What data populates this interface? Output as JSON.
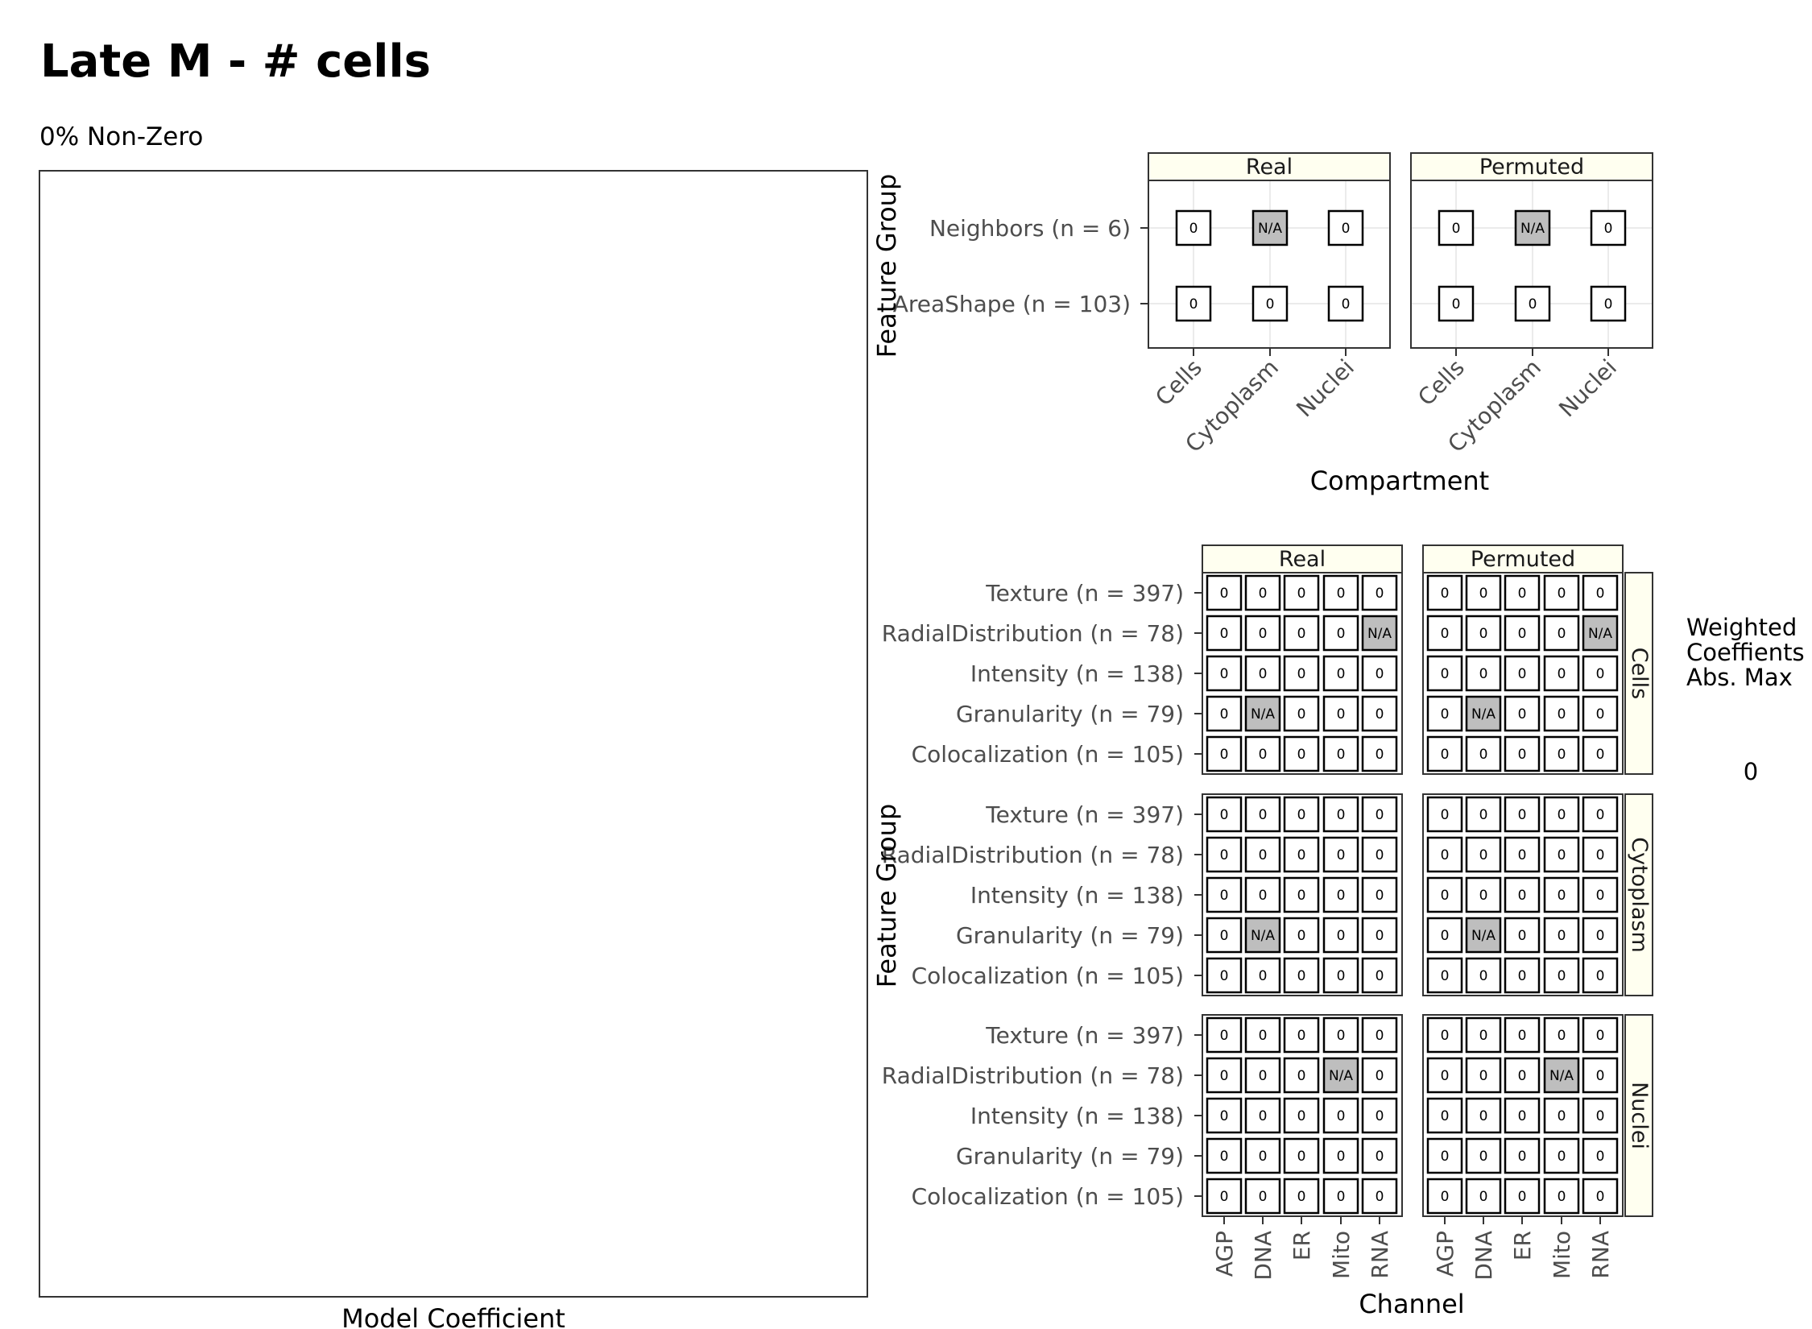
{
  "chart_data": [
    {
      "type": "bar",
      "title": "Late M - # cells",
      "subtitle": "0% Non-Zero",
      "xlabel": "Model Coefficient",
      "ylabel": "",
      "categories": [],
      "values": []
    },
    {
      "type": "heatmap",
      "xlabel": "Compartment",
      "ylabel": "Feature Group",
      "panels": [
        "Real",
        "Permuted"
      ],
      "x": [
        "Cells",
        "Cytoplasm",
        "Nuclei"
      ],
      "y": [
        "Neighbors (n = 6)",
        "AreaShape (n = 103)"
      ],
      "cells": {
        "Real": [
          [
            "0",
            "N/A",
            "0"
          ],
          [
            "0",
            "0",
            "0"
          ]
        ],
        "Permuted": [
          [
            "0",
            "N/A",
            "0"
          ],
          [
            "0",
            "0",
            "0"
          ]
        ]
      }
    },
    {
      "type": "heatmap",
      "xlabel": "Channel",
      "ylabel": "Feature Group",
      "panels": [
        "Real",
        "Permuted"
      ],
      "rows": [
        "Cells",
        "Cytoplasm",
        "Nuclei"
      ],
      "x": [
        "AGP",
        "DNA",
        "ER",
        "Mito",
        "RNA"
      ],
      "y": [
        "Texture (n = 397)",
        "RadialDistribution (n = 78)",
        "Intensity (n = 138)",
        "Granularity (n = 79)",
        "Colocalization (n = 105)"
      ],
      "cells": {
        "Cells": [
          [
            "0",
            "0",
            "0",
            "0",
            "0"
          ],
          [
            "0",
            "0",
            "0",
            "0",
            "N/A"
          ],
          [
            "0",
            "0",
            "0",
            "0",
            "0"
          ],
          [
            "0",
            "N/A",
            "0",
            "0",
            "0"
          ],
          [
            "0",
            "0",
            "0",
            "0",
            "0"
          ]
        ],
        "Cytoplasm": [
          [
            "0",
            "0",
            "0",
            "0",
            "0"
          ],
          [
            "0",
            "0",
            "0",
            "0",
            "0"
          ],
          [
            "0",
            "0",
            "0",
            "0",
            "0"
          ],
          [
            "0",
            "N/A",
            "0",
            "0",
            "0"
          ],
          [
            "0",
            "0",
            "0",
            "0",
            "0"
          ]
        ],
        "Nuclei": [
          [
            "0",
            "0",
            "0",
            "0",
            "0"
          ],
          [
            "0",
            "0",
            "0",
            "N/A",
            "0"
          ],
          [
            "0",
            "0",
            "0",
            "0",
            "0"
          ],
          [
            "0",
            "0",
            "0",
            "0",
            "0"
          ],
          [
            "0",
            "0",
            "0",
            "0",
            "0"
          ]
        ]
      }
    }
  ],
  "legend": {
    "title_lines": [
      "Weighted",
      "Coeffients",
      "Abs. Max"
    ],
    "value": "0",
    "placement": "right"
  },
  "colors": {
    "tile_fill": "#ffffff",
    "na_fill": "#bebebe",
    "strip_fill": "#fffff0",
    "grid": "#ebebeb",
    "panel_border": "#333333"
  }
}
